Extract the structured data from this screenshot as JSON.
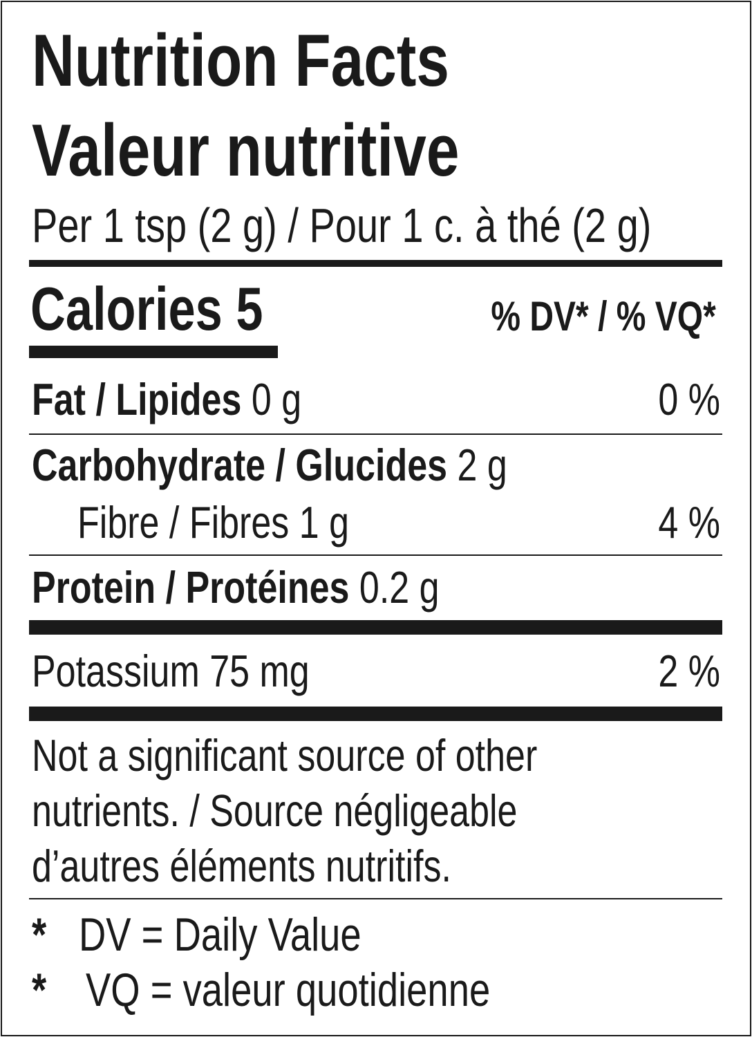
{
  "title_en": "Nutrition Facts",
  "title_fr": "Valeur nutritive",
  "serving": "Per 1 tsp (2 g) / Pour 1 c. à thé (2 g)",
  "calories": {
    "label": "Calories 5"
  },
  "dv_header": "% DV* / % VQ*",
  "nutrients": [
    {
      "label": "Fat / Lipides",
      "amount": "0 g",
      "dv": "0 %"
    },
    {
      "label": "Carbohydrate / Glucides",
      "amount": "2 g",
      "dv": ""
    },
    {
      "label": "Fibre / Fibres 1 g",
      "amount": "",
      "dv": "4 %"
    },
    {
      "label": "Protein / Protéines",
      "amount": "0.2 g",
      "dv": ""
    },
    {
      "label": "Potassium 75 mg",
      "amount": "",
      "dv": "2 %"
    }
  ],
  "footnote": [
    "Not a significant source of other",
    "nutrients. / Source négligeable",
    "d’autres éléments nutritifs."
  ],
  "legend": [
    {
      "star": "*",
      "text": "DV = Daily Value"
    },
    {
      "star": "*",
      "text": "VQ = valeur quotidienne"
    }
  ]
}
